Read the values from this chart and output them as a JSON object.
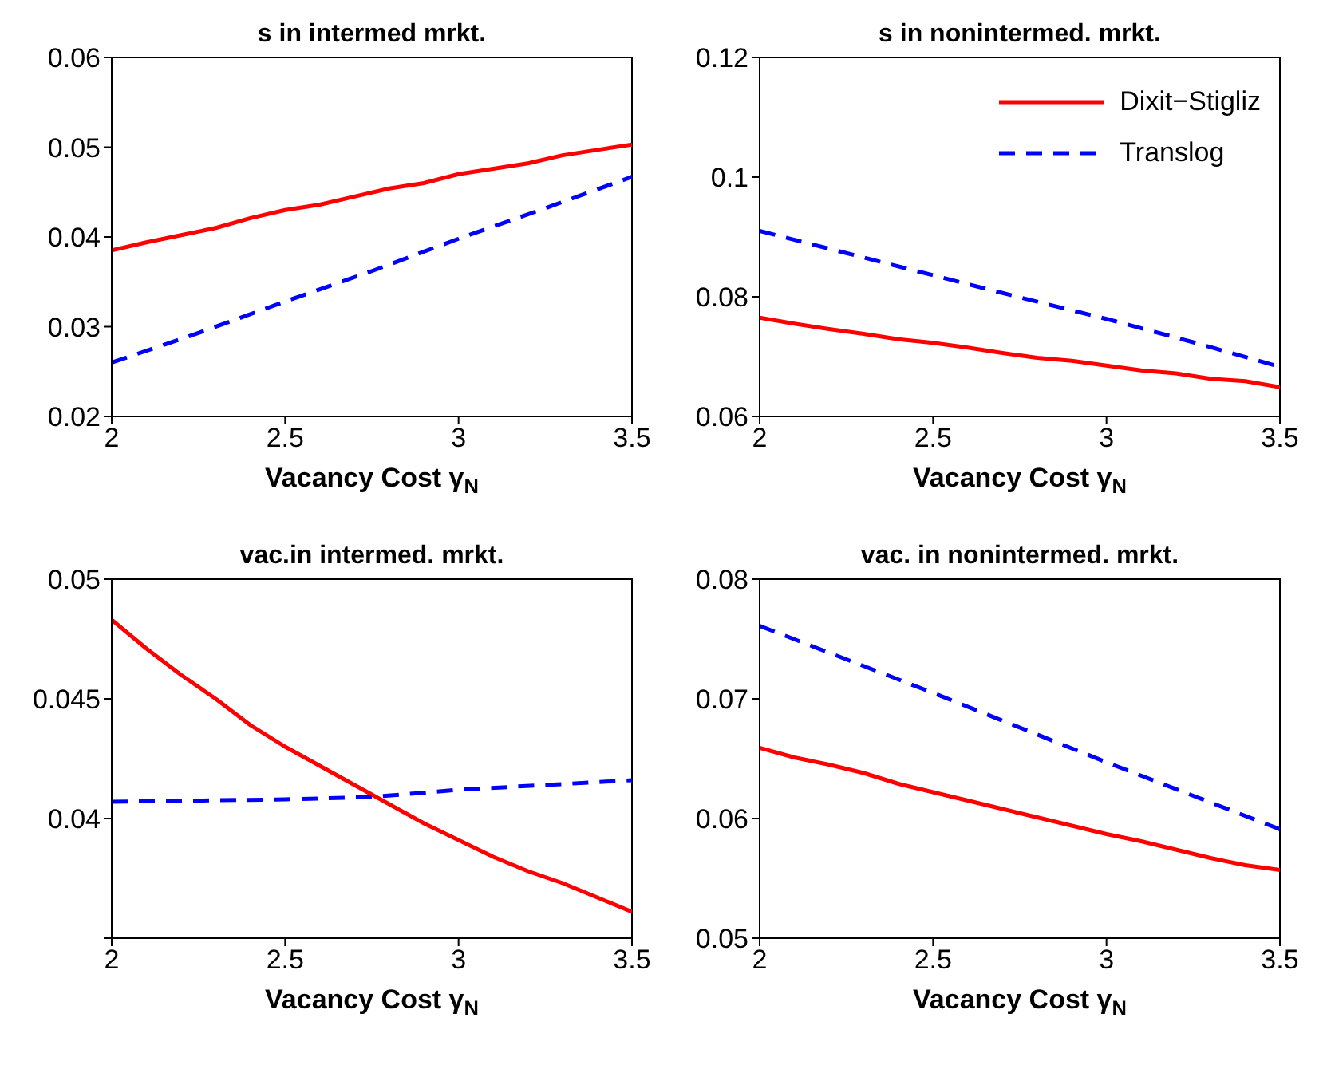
{
  "chart_data": [
    {
      "type": "line",
      "title": "s in intermed mrkt.",
      "xlabel": "Vacancy Cost γ$_{N}$",
      "xlim": [
        2,
        3.5
      ],
      "xticks": [
        2,
        2.5,
        3,
        3.5
      ],
      "ylim": [
        0.02,
        0.06
      ],
      "yticks": [
        0.02,
        0.03,
        0.04,
        0.05,
        0.06
      ],
      "grid": false,
      "legend": false,
      "marker": "none",
      "series": [
        {
          "color": "#ff0000",
          "line_style": "solid",
          "x": [
            2,
            2.1,
            2.2,
            2.3,
            2.4,
            2.5,
            2.6,
            2.7,
            2.8,
            2.9,
            3,
            3.1,
            3.2,
            3.3,
            3.4,
            3.5
          ],
          "values": [
            0.0385,
            0.0394,
            0.0402,
            0.041,
            0.0421,
            0.043,
            0.0436,
            0.0445,
            0.0454,
            0.046,
            0.047,
            0.0476,
            0.0482,
            0.0491,
            0.0497,
            0.0503
          ]
        },
        {
          "color": "#0000ff",
          "line_style": "dashed",
          "x": [
            2,
            2.25,
            2.5,
            2.75,
            3,
            3.25,
            3.5
          ],
          "values": [
            0.026,
            0.0293,
            0.0328,
            0.0362,
            0.0398,
            0.0432,
            0.0467
          ]
        }
      ]
    },
    {
      "type": "line",
      "title": "s in nonintermed. mrkt.",
      "xlabel": "Vacancy Cost γ$_{N}$",
      "xlim": [
        2,
        3.5
      ],
      "xticks": [
        2,
        2.5,
        3,
        3.5
      ],
      "ylim": [
        0.06,
        0.12
      ],
      "yticks": [
        0.06,
        0.08,
        0.1,
        0.12
      ],
      "grid": false,
      "legend": "top right",
      "marker": "none",
      "series": [
        {
          "name": "Dixit−Stigliz",
          "color": "#ff0000",
          "line_style": "solid",
          "x": [
            2,
            2.1,
            2.2,
            2.3,
            2.4,
            2.5,
            2.6,
            2.7,
            2.8,
            2.9,
            3,
            3.1,
            3.2,
            3.3,
            3.4,
            3.5
          ],
          "values": [
            0.0765,
            0.0755,
            0.0746,
            0.0738,
            0.0729,
            0.0723,
            0.0715,
            0.0706,
            0.0698,
            0.0693,
            0.0685,
            0.0677,
            0.0672,
            0.0663,
            0.0659,
            0.0649
          ]
        },
        {
          "name": "Translog",
          "color": "#0000ff",
          "line_style": "dashed",
          "x": [
            2,
            2.25,
            2.5,
            2.75,
            3,
            3.25,
            3.5
          ],
          "values": [
            0.091,
            0.0873,
            0.0836,
            0.0799,
            0.0763,
            0.0724,
            0.0683
          ]
        }
      ]
    },
    {
      "type": "line",
      "title": "vac.in intermed. mrkt.",
      "xlabel": "Vacancy Cost γ$_{N}$",
      "xlim": [
        2,
        3.5
      ],
      "xticks": [
        2,
        2.5,
        3,
        3.5
      ],
      "ylim": [
        0.035,
        0.05
      ],
      "yticks": [
        {
          "value": 0.035,
          "label": null
        },
        0.04,
        0.045,
        0.05
      ],
      "grid": false,
      "legend": false,
      "marker": "none",
      "series": [
        {
          "color": "#ff0000",
          "line_style": "solid",
          "x": [
            2,
            2.1,
            2.2,
            2.3,
            2.4,
            2.5,
            2.6,
            2.7,
            2.8,
            2.9,
            3,
            3.1,
            3.2,
            3.3,
            3.4,
            3.5
          ],
          "values": [
            0.0483,
            0.0471,
            0.046,
            0.045,
            0.0439,
            0.043,
            0.0422,
            0.0414,
            0.0406,
            0.0398,
            0.0391,
            0.0384,
            0.0378,
            0.0373,
            0.0367,
            0.0361
          ]
        },
        {
          "color": "#0000ff",
          "line_style": "dashed",
          "x": [
            2,
            2.5,
            2.75,
            3,
            3.25,
            3.5
          ],
          "values": [
            0.0407,
            0.0408,
            0.0409,
            0.0412,
            0.0414,
            0.0416
          ]
        }
      ]
    },
    {
      "type": "line",
      "title": "vac. in nonintermed. mrkt.",
      "xlabel": "Vacancy Cost γ$_{N}$",
      "xlim": [
        2,
        3.5
      ],
      "xticks": [
        2,
        2.5,
        3,
        3.5
      ],
      "ylim": [
        0.05,
        0.08
      ],
      "yticks": [
        0.05,
        0.06,
        0.07,
        0.08
      ],
      "grid": false,
      "legend": false,
      "marker": "none",
      "series": [
        {
          "color": "#ff0000",
          "line_style": "solid",
          "x": [
            2,
            2.1,
            2.2,
            2.3,
            2.4,
            2.5,
            2.6,
            2.7,
            2.8,
            2.9,
            3,
            3.1,
            3.2,
            3.3,
            3.4,
            3.5
          ],
          "values": [
            0.0659,
            0.0651,
            0.0645,
            0.0638,
            0.0629,
            0.0622,
            0.0615,
            0.0608,
            0.0601,
            0.0594,
            0.0587,
            0.0581,
            0.0574,
            0.0567,
            0.0561,
            0.0557
          ]
        },
        {
          "color": "#0000ff",
          "line_style": "dashed",
          "x": [
            2,
            2.25,
            2.5,
            2.75,
            3,
            3.25,
            3.5
          ],
          "values": [
            0.0761,
            0.0733,
            0.0705,
            0.0676,
            0.0647,
            0.0619,
            0.0591
          ]
        }
      ]
    }
  ]
}
